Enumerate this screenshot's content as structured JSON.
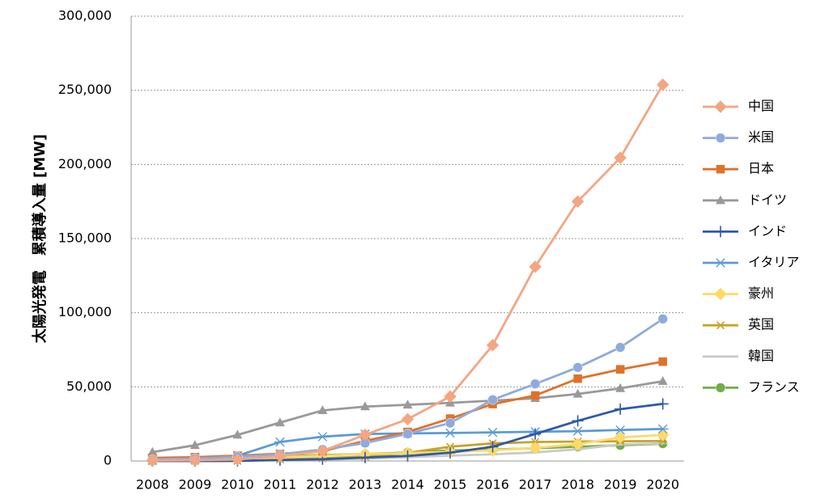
{
  "chart_data": {
    "type": "line",
    "title": "",
    "xlabel": "",
    "ylabel": "太陽光発電　累積導入量 [MW]",
    "ylim": [
      0,
      300000
    ],
    "yticks": [
      "0",
      "50,000",
      "100,000",
      "150,000",
      "200,000",
      "250,000",
      "300,000"
    ],
    "ytick_values": [
      0,
      50000,
      100000,
      150000,
      200000,
      250000,
      300000
    ],
    "grid": "horizontal dotted",
    "legend_position": "right",
    "x": [
      "2008",
      "2009",
      "2010",
      "2011",
      "2012",
      "2013",
      "2014",
      "2015",
      "2016",
      "2017",
      "2018",
      "2019",
      "2020"
    ],
    "series": [
      {
        "name": "中国",
        "color": "#F4A582",
        "marker": "diamond",
        "values": [
          300,
          500,
          1000,
          3300,
          6700,
          17700,
          28200,
          43500,
          78100,
          131000,
          175000,
          204500,
          253800
        ]
      },
      {
        "name": "米国",
        "color": "#8FAADC",
        "marker": "circle",
        "values": [
          1200,
          1700,
          2900,
          4500,
          7700,
          12100,
          18300,
          25600,
          41300,
          52000,
          63100,
          76600,
          95800
        ]
      },
      {
        "name": "日本",
        "color": "#E07128",
        "marker": "square",
        "values": [
          2100,
          2600,
          3600,
          4900,
          6600,
          13600,
          19600,
          28600,
          38400,
          44200,
          55500,
          61800,
          67000
        ]
      },
      {
        "name": "ドイツ",
        "color": "#999999",
        "marker": "triangle",
        "values": [
          6000,
          10600,
          17600,
          25900,
          34100,
          36700,
          37900,
          39200,
          40700,
          42300,
          45200,
          49000,
          53800
        ]
      },
      {
        "name": "インド",
        "color": "#2E5AA6",
        "marker": "plus",
        "values": [
          0,
          0,
          100,
          600,
          1200,
          2300,
          3400,
          5600,
          9600,
          18200,
          27100,
          35000,
          38500
        ]
      },
      {
        "name": "イタリア",
        "color": "#5B9BD5",
        "marker": "asterisk",
        "values": [
          500,
          1200,
          3500,
          12800,
          16400,
          18200,
          18600,
          18900,
          19300,
          19700,
          20100,
          20900,
          21600
        ]
      },
      {
        "name": "豪州",
        "color": "#FFD966",
        "marker": "diamond",
        "values": [
          100,
          200,
          1100,
          2400,
          3700,
          4600,
          5300,
          6100,
          7200,
          8800,
          11300,
          15900,
          17600
        ]
      },
      {
        "name": "英国",
        "color": "#C9A227",
        "marker": "x",
        "values": [
          0,
          0,
          100,
          1000,
          1800,
          2900,
          5500,
          9600,
          11900,
          12800,
          13100,
          13300,
          13500
        ]
      },
      {
        "name": "韓国",
        "color": "#C9C9C9",
        "marker": "dash",
        "values": [
          300,
          400,
          600,
          700,
          1000,
          1600,
          2500,
          3600,
          4500,
          5800,
          7900,
          11200,
          11900
        ]
      },
      {
        "name": "フランス",
        "color": "#70AD47",
        "marker": "circle",
        "values": [
          100,
          300,
          1200,
          2900,
          4100,
          4600,
          5700,
          7100,
          7700,
          8600,
          9600,
          10600,
          11700
        ]
      }
    ]
  }
}
